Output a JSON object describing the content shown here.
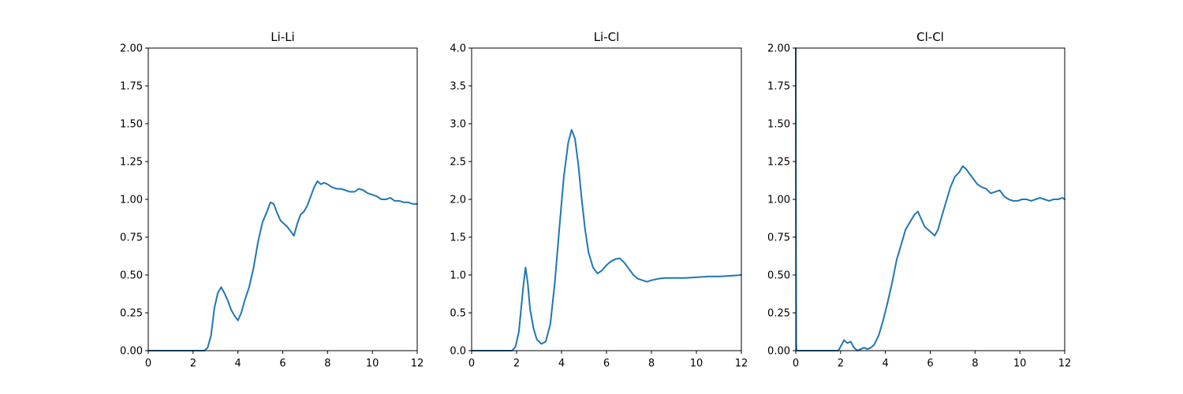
{
  "chart_data": [
    {
      "type": "line",
      "title": "Li-Li",
      "xlabel": "",
      "ylabel": "",
      "xlim": [
        0,
        12
      ],
      "ylim": [
        0,
        2
      ],
      "xticks": [
        "0",
        "2",
        "4",
        "6",
        "8",
        "10",
        "12"
      ],
      "yticks": [
        "0.00",
        "0.25",
        "0.50",
        "0.75",
        "1.00",
        "1.25",
        "1.50",
        "1.75",
        "2.00"
      ],
      "grid": false,
      "color": "#1f77b4",
      "series": [
        {
          "x": [
            0,
            2.0,
            2.5,
            2.65,
            2.8,
            2.95,
            3.1,
            3.25,
            3.4,
            3.55,
            3.7,
            3.85,
            4.0,
            4.15,
            4.3,
            4.5,
            4.7,
            4.9,
            5.1,
            5.3,
            5.45,
            5.6,
            5.75,
            5.9,
            6.05,
            6.2,
            6.35,
            6.5,
            6.65,
            6.8,
            6.95,
            7.1,
            7.25,
            7.4,
            7.55,
            7.7,
            7.85,
            8.0,
            8.2,
            8.4,
            8.6,
            8.8,
            9.0,
            9.2,
            9.4,
            9.6,
            9.8,
            10.0,
            10.2,
            10.4,
            10.6,
            10.8,
            11.0,
            11.2,
            11.4,
            11.6,
            11.8,
            12.0
          ],
          "y": [
            0,
            0,
            0,
            0.02,
            0.1,
            0.28,
            0.38,
            0.42,
            0.38,
            0.33,
            0.27,
            0.23,
            0.2,
            0.25,
            0.33,
            0.42,
            0.55,
            0.72,
            0.85,
            0.92,
            0.98,
            0.97,
            0.91,
            0.86,
            0.84,
            0.82,
            0.79,
            0.76,
            0.84,
            0.9,
            0.92,
            0.96,
            1.02,
            1.08,
            1.12,
            1.1,
            1.11,
            1.1,
            1.08,
            1.07,
            1.07,
            1.06,
            1.05,
            1.05,
            1.07,
            1.06,
            1.04,
            1.03,
            1.02,
            1.0,
            1.0,
            1.01,
            0.99,
            0.99,
            0.98,
            0.98,
            0.97,
            0.97
          ]
        }
      ]
    },
    {
      "type": "line",
      "title": "Li-Cl",
      "xlabel": "",
      "ylabel": "",
      "xlim": [
        0,
        12
      ],
      "ylim": [
        0,
        4
      ],
      "xticks": [
        "0",
        "2",
        "4",
        "6",
        "8",
        "10",
        "12"
      ],
      "yticks": [
        "0.0",
        "0.5",
        "1.0",
        "1.5",
        "2.0",
        "2.5",
        "3.0",
        "3.5",
        "4.0"
      ],
      "grid": false,
      "color": "#1f77b4",
      "series": [
        {
          "x": [
            0,
            1.6,
            1.8,
            1.95,
            2.1,
            2.2,
            2.3,
            2.4,
            2.5,
            2.6,
            2.75,
            2.9,
            3.1,
            3.3,
            3.5,
            3.7,
            3.9,
            4.1,
            4.3,
            4.45,
            4.6,
            4.75,
            4.9,
            5.05,
            5.2,
            5.4,
            5.6,
            5.8,
            6.0,
            6.2,
            6.4,
            6.6,
            6.8,
            7.0,
            7.2,
            7.4,
            7.6,
            7.8,
            8.0,
            8.3,
            8.6,
            9.0,
            9.5,
            10.0,
            10.5,
            11.0,
            11.5,
            12.0
          ],
          "y": [
            0,
            0,
            0.0,
            0.05,
            0.25,
            0.55,
            0.85,
            1.1,
            0.88,
            0.55,
            0.3,
            0.15,
            0.09,
            0.12,
            0.35,
            0.9,
            1.6,
            2.3,
            2.75,
            2.92,
            2.8,
            2.45,
            2.0,
            1.6,
            1.3,
            1.1,
            1.02,
            1.06,
            1.13,
            1.18,
            1.21,
            1.22,
            1.16,
            1.08,
            1.0,
            0.95,
            0.93,
            0.91,
            0.93,
            0.95,
            0.96,
            0.96,
            0.96,
            0.97,
            0.98,
            0.98,
            0.99,
            1.0
          ]
        }
      ]
    },
    {
      "type": "line",
      "title": "Cl-Cl",
      "xlabel": "",
      "ylabel": "",
      "xlim": [
        0,
        12
      ],
      "ylim": [
        0,
        2
      ],
      "xticks": [
        "0",
        "2",
        "4",
        "6",
        "8",
        "10",
        "12"
      ],
      "yticks": [
        "0.00",
        "0.25",
        "0.50",
        "0.75",
        "1.00",
        "1.25",
        "1.50",
        "1.75",
        "2.00"
      ],
      "grid": false,
      "color": "#1f77b4",
      "series": [
        {
          "x": [
            0,
            0.01,
            0.02,
            0.04,
            1.9,
            2.05,
            2.15,
            2.3,
            2.45,
            2.6,
            2.75,
            2.9,
            3.05,
            3.2,
            3.35,
            3.5,
            3.7,
            3.9,
            4.1,
            4.3,
            4.5,
            4.7,
            4.9,
            5.1,
            5.3,
            5.45,
            5.6,
            5.75,
            5.9,
            6.05,
            6.2,
            6.35,
            6.5,
            6.7,
            6.9,
            7.1,
            7.3,
            7.45,
            7.6,
            7.75,
            7.9,
            8.1,
            8.3,
            8.5,
            8.7,
            8.9,
            9.1,
            9.3,
            9.5,
            9.7,
            9.9,
            10.1,
            10.3,
            10.5,
            10.7,
            10.9,
            11.1,
            11.3,
            11.5,
            11.7,
            11.9,
            12.0
          ],
          "y": [
            2.0,
            0.8,
            0.05,
            0,
            0,
            0.04,
            0.07,
            0.05,
            0.06,
            0.02,
            0.0,
            0.01,
            0.02,
            0.01,
            0.02,
            0.04,
            0.1,
            0.2,
            0.32,
            0.45,
            0.6,
            0.7,
            0.8,
            0.85,
            0.9,
            0.92,
            0.87,
            0.82,
            0.8,
            0.78,
            0.76,
            0.8,
            0.88,
            0.98,
            1.08,
            1.15,
            1.18,
            1.22,
            1.2,
            1.17,
            1.14,
            1.1,
            1.08,
            1.07,
            1.04,
            1.05,
            1.06,
            1.02,
            1.0,
            0.99,
            0.99,
            1.0,
            1.0,
            0.99,
            1.0,
            1.01,
            1.0,
            0.99,
            1.0,
            1.0,
            1.01,
            1.0
          ]
        }
      ]
    }
  ]
}
